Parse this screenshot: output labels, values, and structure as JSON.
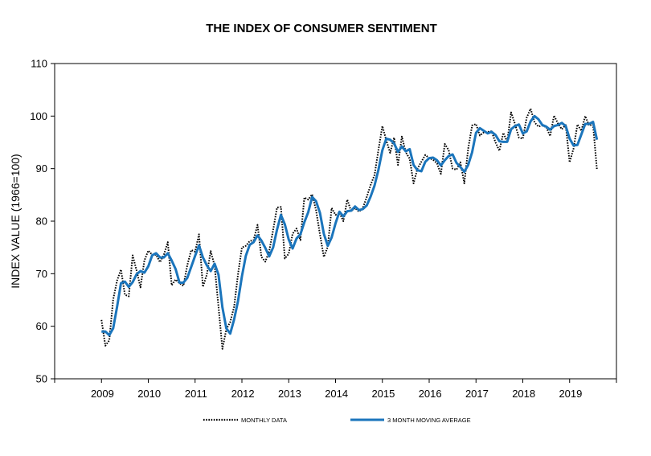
{
  "chart_data": {
    "type": "line",
    "title": "THE INDEX OF CONSUMER SENTIMENT",
    "xlabel": "",
    "ylabel": "INDEX VALUE (1966=100)",
    "xlim": [
      2008.0,
      2020.0
    ],
    "ylim": [
      50,
      110
    ],
    "x_ticks": [
      "2009",
      "2010",
      "2011",
      "2012",
      "2013",
      "2014",
      "2015",
      "2016",
      "2017",
      "2018",
      "2019"
    ],
    "y_ticks": [
      "50",
      "60",
      "70",
      "80",
      "90",
      "100",
      "110"
    ],
    "grid": false,
    "legend_position": "bottom",
    "series": [
      {
        "name": "MONTHLY DATA",
        "color": "#000000",
        "style": "dotted",
        "start": "2009-01",
        "values": [
          61.2,
          56.3,
          57.3,
          65.1,
          68.7,
          70.8,
          66.0,
          65.7,
          73.5,
          70.6,
          67.4,
          72.5,
          74.4,
          73.6,
          73.6,
          72.2,
          73.6,
          76.0,
          67.8,
          68.9,
          68.2,
          67.7,
          71.6,
          74.5,
          74.2,
          77.5,
          67.5,
          69.8,
          74.3,
          71.5,
          63.7,
          55.7,
          59.4,
          60.8,
          63.7,
          69.9,
          75.0,
          75.3,
          76.2,
          76.4,
          79.3,
          73.2,
          72.3,
          74.3,
          78.3,
          82.6,
          82.7,
          72.9,
          73.8,
          77.6,
          78.6,
          76.4,
          84.5,
          84.1,
          85.1,
          82.1,
          77.5,
          73.2,
          75.1,
          82.5,
          81.2,
          81.6,
          80.0,
          84.1,
          81.9,
          82.5,
          81.8,
          82.5,
          84.6,
          86.9,
          88.8,
          93.6,
          98.1,
          95.4,
          93.0,
          95.9,
          90.7,
          96.1,
          93.1,
          91.9,
          87.2,
          90.0,
          91.3,
          92.6,
          92.0,
          91.7,
          91.0,
          89.0,
          94.7,
          93.5,
          90.0,
          89.8,
          91.2,
          87.2,
          93.8,
          98.2,
          98.5,
          96.3,
          96.9,
          97.0,
          97.1,
          95.0,
          93.4,
          96.8,
          95.1,
          100.7,
          98.5,
          95.9,
          95.7,
          99.7,
          101.4,
          98.8,
          98.0,
          98.2,
          97.9,
          96.2,
          100.1,
          98.6,
          97.5,
          98.3,
          91.2,
          93.8,
          98.4,
          97.2,
          100.0,
          98.2,
          98.4,
          89.8
        ]
      },
      {
        "name": "3 MONTH MOVING AVERAGE",
        "color": "#1b75bc",
        "style": "solid",
        "start": "2009-01",
        "values": [
          59.0,
          59.0,
          58.3,
          59.6,
          63.7,
          68.2,
          68.5,
          67.5,
          68.4,
          69.9,
          70.5,
          70.2,
          71.4,
          73.5,
          73.9,
          73.1,
          73.1,
          73.9,
          72.5,
          70.9,
          68.3,
          68.3,
          69.2,
          71.3,
          73.4,
          75.4,
          73.1,
          71.6,
          70.5,
          71.9,
          69.8,
          63.6,
          59.6,
          58.6,
          61.3,
          64.8,
          69.5,
          73.4,
          75.5,
          76.0,
          77.3,
          76.3,
          74.9,
          73.3,
          75.0,
          78.4,
          81.2,
          79.4,
          76.5,
          74.8,
          76.7,
          77.5,
          79.8,
          81.7,
          84.6,
          83.8,
          81.6,
          77.6,
          75.3,
          76.9,
          79.6,
          81.8,
          80.9,
          81.9,
          82.0,
          82.8,
          82.1,
          82.3,
          83.0,
          84.7,
          86.8,
          89.8,
          93.5,
          95.7,
          95.5,
          94.8,
          93.2,
          94.2,
          93.3,
          93.7,
          90.7,
          89.7,
          89.5,
          91.3,
          92.0,
          92.1,
          91.6,
          90.6,
          91.6,
          92.4,
          92.7,
          91.1,
          90.3,
          89.4,
          90.7,
          93.1,
          96.8,
          97.7,
          97.2,
          96.7,
          97.0,
          96.4,
          95.2,
          95.1,
          95.1,
          97.5,
          98.1,
          98.4,
          96.7,
          97.1,
          99.0,
          100.0,
          99.4,
          98.3,
          98.0,
          97.4,
          98.1,
          98.3,
          98.7,
          98.1,
          95.7,
          94.4,
          94.5,
          96.5,
          98.5,
          98.5,
          98.9,
          95.5
        ]
      }
    ]
  }
}
